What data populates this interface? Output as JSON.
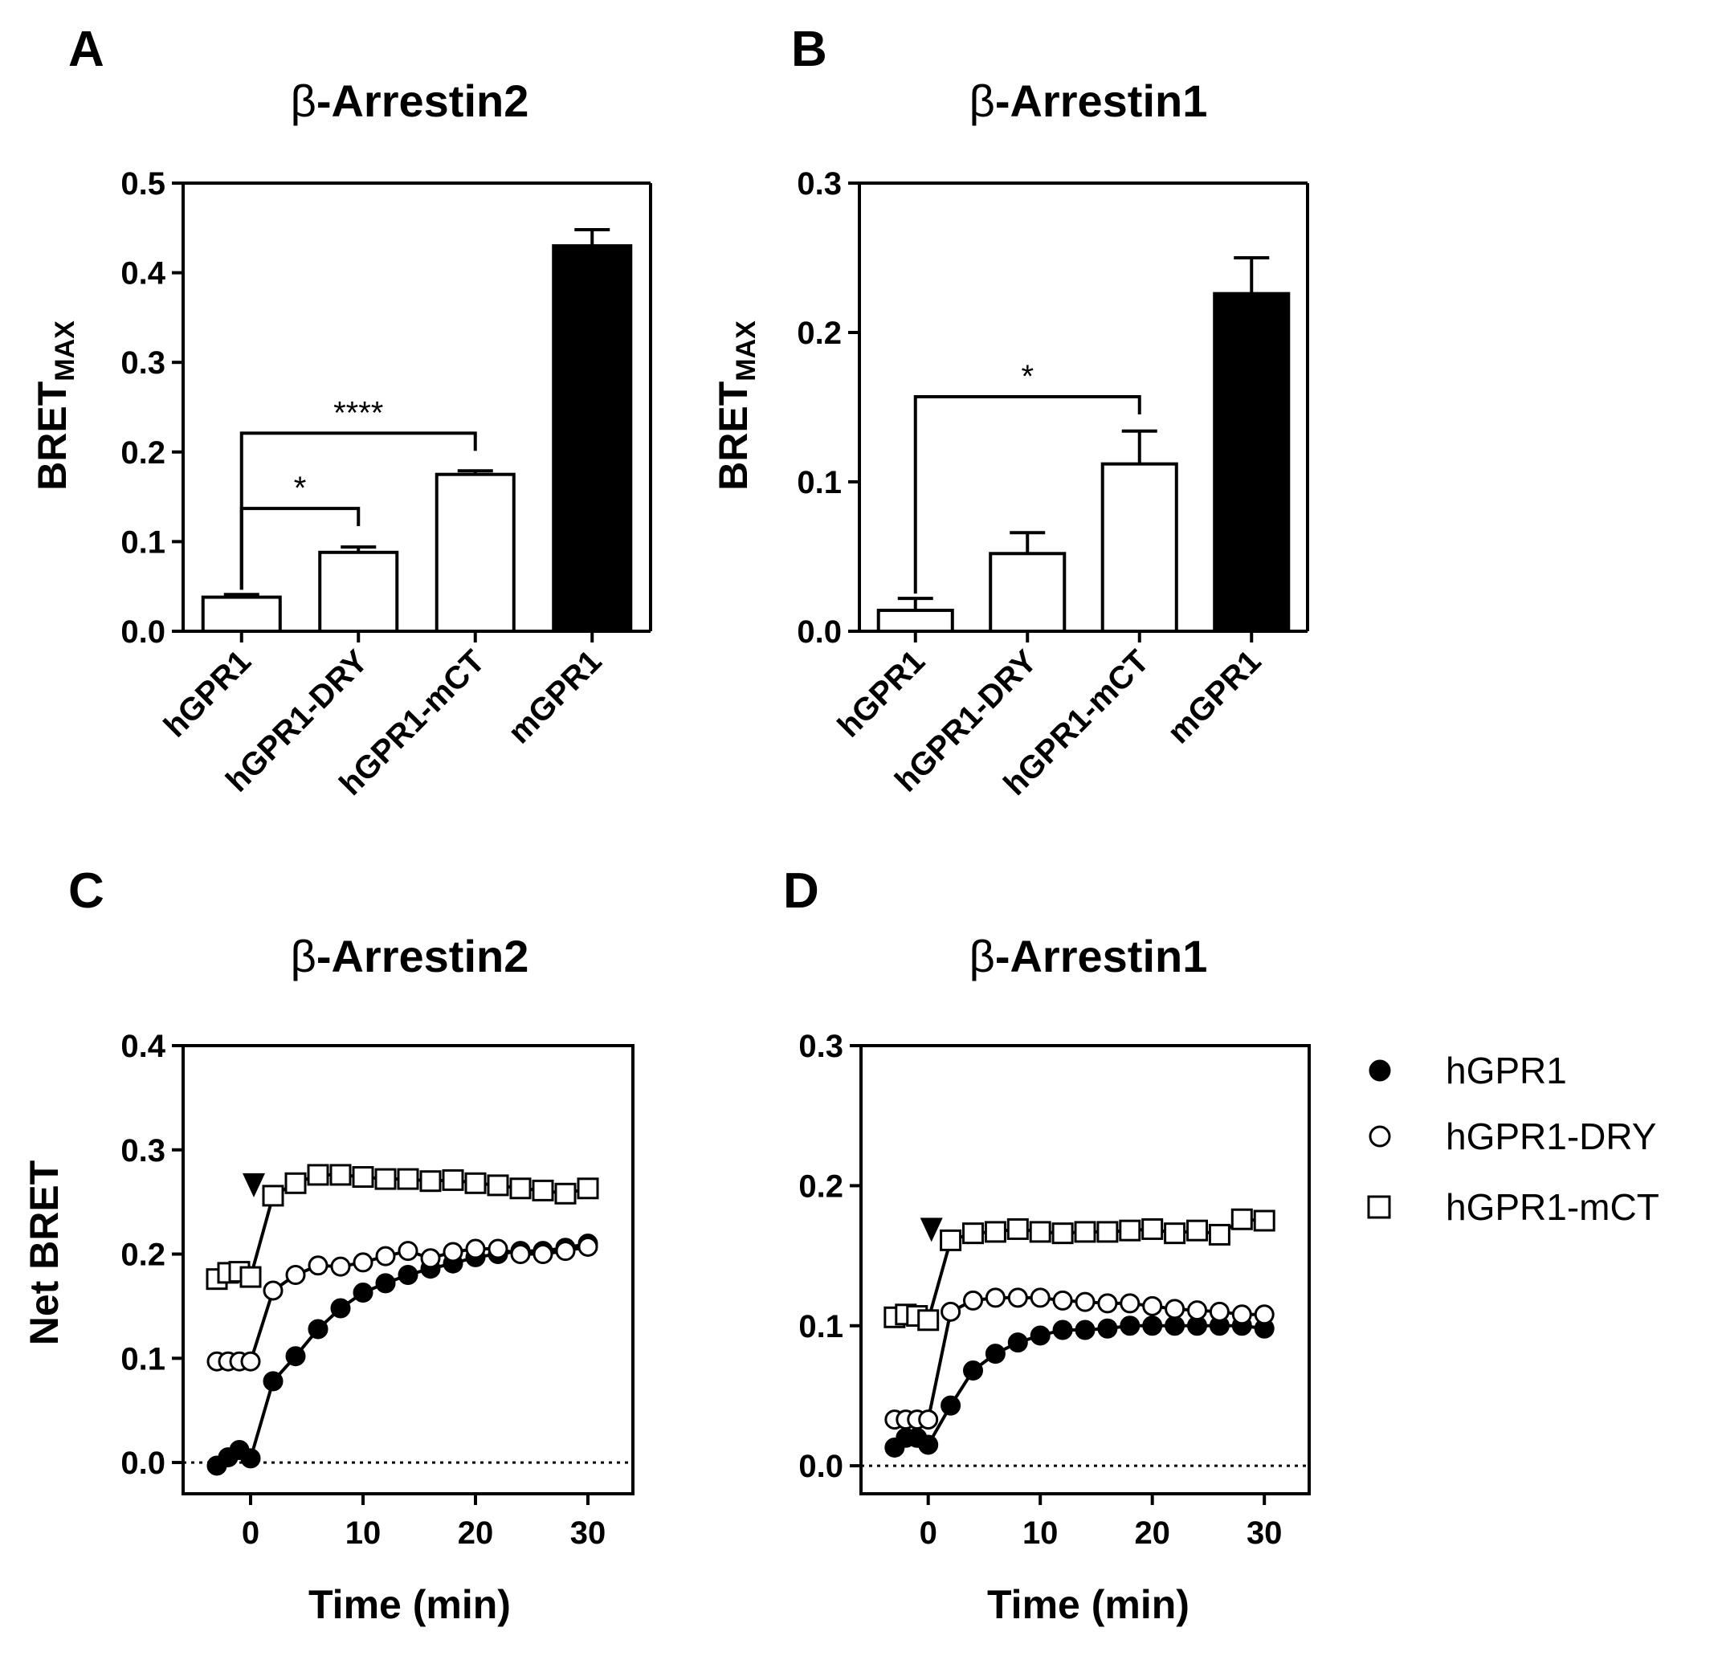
{
  "chart_data": [
    {
      "panel": "A",
      "type": "bar",
      "title_symbol": "β",
      "title_text": "-Arrestin2",
      "ylabel_main": "BRET",
      "ylabel_sub": "MAX",
      "ylim": [
        0,
        0.5
      ],
      "yticks": [
        "0.0",
        "0.1",
        "0.2",
        "0.3",
        "0.4",
        "0.5"
      ],
      "categories": [
        "hGPR1",
        "hGPR1-DRY",
        "hGPR1-mCT",
        "mGPR1"
      ],
      "values": [
        0.038,
        0.088,
        0.175,
        0.43
      ],
      "errors": [
        0.003,
        0.006,
        0.004,
        0.018
      ],
      "colors": [
        "#ffffff",
        "#ffffff",
        "#ffffff",
        "#000000"
      ],
      "significance": [
        {
          "from": 0,
          "to": 1,
          "label": "*",
          "level": 0.137
        },
        {
          "from": 0,
          "to": 2,
          "label": "****",
          "level": 0.221
        }
      ]
    },
    {
      "panel": "B",
      "type": "bar",
      "title_symbol": "β",
      "title_text": "-Arrestin1",
      "ylabel_main": "BRET",
      "ylabel_sub": "MAX",
      "ylim": [
        0,
        0.3
      ],
      "yticks": [
        "0.0",
        "0.1",
        "0.2",
        "0.3"
      ],
      "categories": [
        "hGPR1",
        "hGPR1-DRY",
        "hGPR1-mCT",
        "mGPR1"
      ],
      "values": [
        0.014,
        0.052,
        0.112,
        0.226
      ],
      "errors": [
        0.008,
        0.014,
        0.022,
        0.024
      ],
      "colors": [
        "#ffffff",
        "#ffffff",
        "#ffffff",
        "#000000"
      ],
      "significance": [
        {
          "from": 0,
          "to": 2,
          "label": "*",
          "level": 0.157
        }
      ]
    },
    {
      "panel": "C",
      "type": "line",
      "title_symbol": "β",
      "title_text": "-Arrestin2",
      "xlabel": "Time (min)",
      "ylabel": "Net BRET",
      "xlim": [
        -6,
        34
      ],
      "ylim": [
        -0.03,
        0.4
      ],
      "xticks": [
        "0",
        "10",
        "20",
        "30"
      ],
      "yticks": [
        "0.0",
        "0.1",
        "0.2",
        "0.3",
        "0.4"
      ],
      "arrow_at_x": 0,
      "series": [
        {
          "name": "hGPR1",
          "marker": "filled-circle",
          "x": [
            -3,
            -2,
            -1,
            0,
            2,
            4,
            6,
            8,
            10,
            12,
            14,
            16,
            18,
            20,
            22,
            24,
            26,
            28,
            30
          ],
          "y": [
            -0.003,
            0.005,
            0.012,
            0.004,
            0.078,
            0.102,
            0.128,
            0.148,
            0.163,
            0.172,
            0.18,
            0.186,
            0.191,
            0.197,
            0.2,
            0.203,
            0.203,
            0.206,
            0.21
          ]
        },
        {
          "name": "hGPR1-DRY",
          "marker": "open-circle",
          "x": [
            -3,
            -2,
            -1,
            0,
            2,
            4,
            6,
            8,
            10,
            12,
            14,
            16,
            18,
            20,
            22,
            24,
            26,
            28,
            30
          ],
          "y": [
            0.097,
            0.097,
            0.097,
            0.097,
            0.165,
            0.18,
            0.189,
            0.188,
            0.192,
            0.198,
            0.203,
            0.196,
            0.202,
            0.205,
            0.205,
            0.2,
            0.2,
            0.203,
            0.207
          ]
        },
        {
          "name": "hGPR1-mCT",
          "marker": "open-square",
          "x": [
            -3,
            -2,
            -1,
            0,
            2,
            4,
            6,
            8,
            10,
            12,
            14,
            16,
            18,
            20,
            22,
            24,
            26,
            28,
            30
          ],
          "y": [
            0.176,
            0.182,
            0.183,
            0.178,
            0.256,
            0.268,
            0.276,
            0.276,
            0.274,
            0.272,
            0.272,
            0.27,
            0.271,
            0.268,
            0.266,
            0.263,
            0.261,
            0.258,
            0.263
          ]
        }
      ]
    },
    {
      "panel": "D",
      "type": "line",
      "title_symbol": "β",
      "title_text": "-Arrestin1",
      "xlabel": "Time (min)",
      "ylabel": "",
      "xlim": [
        -6,
        34
      ],
      "ylim": [
        -0.02,
        0.3
      ],
      "xticks": [
        "0",
        "10",
        "20",
        "30"
      ],
      "yticks": [
        "0.0",
        "0.1",
        "0.2",
        "0.3"
      ],
      "arrow_at_x": 0,
      "series": [
        {
          "name": "hGPR1",
          "marker": "filled-circle",
          "x": [
            -3,
            -2,
            -1,
            0,
            2,
            4,
            6,
            8,
            10,
            12,
            14,
            16,
            18,
            20,
            22,
            24,
            26,
            28,
            30
          ],
          "y": [
            0.013,
            0.02,
            0.02,
            0.015,
            0.043,
            0.068,
            0.08,
            0.088,
            0.093,
            0.097,
            0.097,
            0.098,
            0.1,
            0.1,
            0.1,
            0.1,
            0.1,
            0.1,
            0.098
          ]
        },
        {
          "name": "hGPR1-DRY",
          "marker": "open-circle",
          "x": [
            -3,
            -2,
            -1,
            0,
            2,
            4,
            6,
            8,
            10,
            12,
            14,
            16,
            18,
            20,
            22,
            24,
            26,
            28,
            30
          ],
          "y": [
            0.033,
            0.033,
            0.033,
            0.033,
            0.11,
            0.118,
            0.12,
            0.12,
            0.12,
            0.118,
            0.117,
            0.116,
            0.116,
            0.114,
            0.112,
            0.111,
            0.11,
            0.108,
            0.108
          ]
        },
        {
          "name": "hGPR1-mCT",
          "marker": "open-square",
          "x": [
            -3,
            -2,
            -1,
            0,
            2,
            4,
            6,
            8,
            10,
            12,
            14,
            16,
            18,
            20,
            22,
            24,
            26,
            28,
            30
          ],
          "y": [
            0.106,
            0.108,
            0.107,
            0.104,
            0.161,
            0.166,
            0.167,
            0.169,
            0.167,
            0.166,
            0.167,
            0.167,
            0.168,
            0.169,
            0.166,
            0.168,
            0.165,
            0.176,
            0.175
          ]
        }
      ]
    }
  ],
  "legend": [
    {
      "label": "hGPR1",
      "marker": "filled-circle"
    },
    {
      "label": "hGPR1-DRY",
      "marker": "open-circle"
    },
    {
      "label": "hGPR1-mCT",
      "marker": "open-square"
    }
  ]
}
